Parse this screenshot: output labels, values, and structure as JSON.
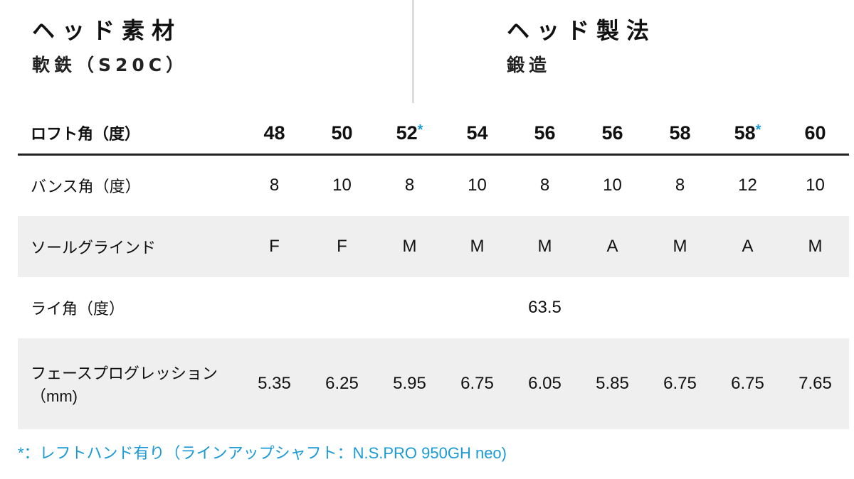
{
  "specs": [
    {
      "heading": "ヘッド素材",
      "value": "軟鉄（S20C）"
    },
    {
      "heading": "ヘッド製法",
      "value": "鍛造"
    }
  ],
  "table": {
    "header_label": "ロフト角（度）",
    "lofts": [
      {
        "v": "48",
        "a": ""
      },
      {
        "v": "50",
        "a": ""
      },
      {
        "v": "52",
        "a": "*"
      },
      {
        "v": "54",
        "a": ""
      },
      {
        "v": "56",
        "a": ""
      },
      {
        "v": "56",
        "a": ""
      },
      {
        "v": "58",
        "a": ""
      },
      {
        "v": "58",
        "a": "*"
      },
      {
        "v": "60",
        "a": ""
      }
    ],
    "rows": [
      {
        "label": "バンス角（度）",
        "values": [
          "8",
          "10",
          "8",
          "10",
          "8",
          "10",
          "8",
          "12",
          "10"
        ]
      },
      {
        "label": "ソールグラインド",
        "values": [
          "F",
          "F",
          "M",
          "M",
          "M",
          "A",
          "M",
          "A",
          "M"
        ]
      },
      {
        "label": "ライ角（度）",
        "value": "63.5"
      },
      {
        "label": "フェースプログレッション（mm)",
        "values": [
          "5.35",
          "6.25",
          "5.95",
          "6.75",
          "6.05",
          "5.85",
          "6.75",
          "6.75",
          "7.65"
        ]
      }
    ]
  },
  "footnote": "*：レフトハンド有り（ラインアップシャフト：N.S.PRO 950GH neo)",
  "colors": {
    "accent": "#1a9ad6",
    "stripe": "#efefef"
  }
}
